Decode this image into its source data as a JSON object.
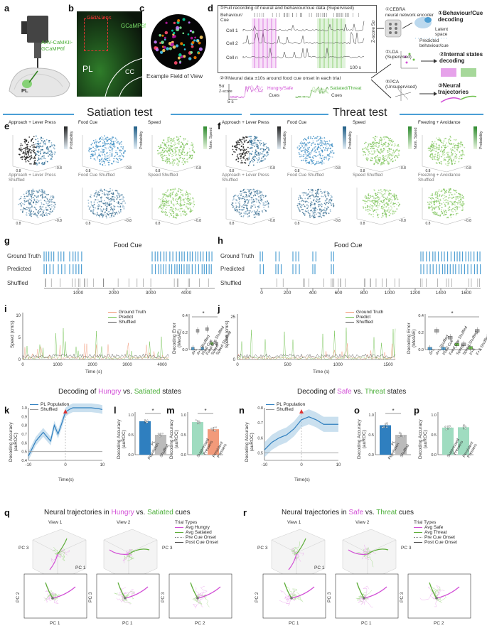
{
  "panels": {
    "a": {
      "letter": "a",
      "label1": "AAV-CaMKII-",
      "label2": "GCaMP6f",
      "region": "PL"
    },
    "b": {
      "letter": "b",
      "lens": "GRIN lens",
      "indicator": "GCaMP6f",
      "pl": "PL",
      "cc": "CC"
    },
    "c": {
      "letter": "c",
      "caption": "Example Field of View"
    },
    "d": {
      "letter": "d",
      "step1": "①Full recording of neural and behaviour/cue data (Supervised)",
      "beh": "Behaviour/\nCue",
      "cell1": "Cell 1",
      "cell2": "Cell 2",
      "celln": "Cell n",
      "scale": "100 s",
      "zscore": "Z-score 5σ",
      "step23": "②③Neural data ±10s around food cue onset in each trial",
      "z5": "5σ",
      "z_axis": "Z-score",
      "t5": "5 s",
      "cue_hungry": "Hungry/Safe",
      "cue_sated": "Satiated/Threat",
      "cues": "Cues",
      "cebra": "①CEBRA\nneural network encoder",
      "lda": "②LDA\n(Supervised)",
      "pca": "③PCA\n(Unsupervised)",
      "out1": "①Behaviour/Cue\ndecoding",
      "latent": "Latent\nspace",
      "predicted": "Predicted\nbehaviour/cue",
      "out2": "②Internal states\ndecoding",
      "out3": "③Neural trajectories"
    },
    "sections": {
      "satiation": "Satiation test",
      "threat": "Threat test"
    },
    "e": {
      "letter": "e",
      "titles": [
        "Approach + Lever Press",
        "Food Cue",
        "Speed"
      ],
      "shuffled": [
        "Approach + Lever Press\nShuffled",
        "Food Cue Shuffled",
        "Speed Shuffled"
      ],
      "cbar": [
        "Probability",
        "Probability",
        "Nom. Speed"
      ]
    },
    "f": {
      "letter": "f",
      "titles": [
        "Approach + Lever Press",
        "Food Cue",
        "Speed",
        "Freezing + Avoidance"
      ],
      "shuffled": [
        "Approach + Lever Press\nShuffled",
        "Food Cue Shuffled",
        "Speed Shuffled",
        "Freezing + Avoidance\nShuffled"
      ],
      "cbar": [
        "Probability",
        "Probability",
        "Nom. Speed",
        "Probability"
      ]
    },
    "g": {
      "letter": "g",
      "title": "Food Cue",
      "rows": [
        "Ground Truth",
        "Predicted",
        "Shuffled"
      ],
      "ticks": [
        "1000",
        "2000",
        "3000",
        "4000"
      ]
    },
    "h": {
      "letter": "h",
      "title": "Food Cue",
      "rows": [
        "Ground Truth",
        "Predicted",
        "Shuffled"
      ],
      "ticks": [
        "0",
        "200",
        "400",
        "600",
        "800",
        "1000",
        "1200",
        "1400",
        "1600"
      ]
    },
    "i": {
      "letter": "i",
      "ylabel": "Speed (cm/s)",
      "xlabel": "Time (s)",
      "yticks": [
        "0",
        "5",
        "10"
      ],
      "xticks": [
        "0",
        "1000",
        "2000",
        "3000",
        "4000"
      ],
      "legend": [
        "Ground Truth",
        "Predict",
        "Shuffled"
      ],
      "box_ylabel": "Decoding Error\n(MedAE)",
      "box_yticks": [
        "0.0",
        "0.2",
        "0.4"
      ],
      "box_cats": [
        "A+L",
        "A+L Shuffled",
        "Food Cue",
        "Food Cue Shuffled",
        "Speed",
        "Speed Shuffled"
      ],
      "star": "*"
    },
    "j": {
      "letter": "j",
      "ylabel": "Speed (cm/s)",
      "xlabel": "Time (s)",
      "yticks": [
        "0",
        "25"
      ],
      "xticks": [
        "0",
        "500",
        "1000",
        "1500"
      ],
      "legend": [
        "Ground Truth",
        "Predict",
        "Shuffled"
      ],
      "box_ylabel": "Decoding Error\n(MedAE)",
      "box_yticks": [
        "0.0",
        "0.2",
        "0.4"
      ],
      "box_cats": [
        "A+L",
        "A+L Shuffled",
        "Food Cue",
        "Food Cue Shuffled",
        "Speed",
        "Speed Shuffled",
        "F+A",
        "F+A Shuffled"
      ],
      "star": "*"
    },
    "k": {
      "letter": "k",
      "title_pre": "Decoding of ",
      "title_a": "Hungry",
      "title_mid": " vs. ",
      "title_b": "Satiated",
      "title_post": " states",
      "legend": [
        "PL Population",
        "Shuffled"
      ],
      "ylabel": "Decoding Accuracy\n(auROC)",
      "xlabel": "Time(s)",
      "yticks": [
        "0.4",
        "0.5",
        "0.6",
        "0.7",
        "0.8",
        "0.9",
        "1.0"
      ],
      "xticks": [
        "-10",
        "0",
        "10"
      ]
    },
    "l": {
      "letter": "l",
      "ylabel": "Decoding Accuracy\n(auROC)",
      "yticks": [
        "0.0",
        "0.5",
        "1.0"
      ],
      "cats": [
        "PL\nPopulation",
        "Shuffled"
      ],
      "values": [
        0.84,
        0.5
      ],
      "star": "*"
    },
    "m": {
      "letter": "m",
      "ylabel": "Decoding Accuracy\n(auROC)",
      "yticks": [
        "0.0",
        "0.5",
        "1.0"
      ],
      "cats": [
        "Suppressed\nPressers",
        "Persistent\nPressers"
      ],
      "values": [
        0.82,
        0.64
      ],
      "star": "*"
    },
    "n": {
      "letter": "n",
      "title_pre": "Decoding of ",
      "title_a": "Safe",
      "title_mid": " vs. ",
      "title_b": "Threat",
      "title_post": " states",
      "legend": [
        "PL Population",
        "Shuffled"
      ],
      "ylabel": "Decoding Accuracy\n(auROC)",
      "xlabel": "Time(s)",
      "yticks": [
        "0.5",
        "0.6",
        "0.7",
        "0.8"
      ],
      "xticks": [
        "-10",
        "0",
        "10"
      ]
    },
    "o": {
      "letter": "o",
      "ylabel": "Decoding Accuracy\n(auROC)",
      "yticks": [
        "0.0",
        "0.5",
        "1.0"
      ],
      "cats": [
        "PL\nPopulation",
        "Shuffled"
      ],
      "values": [
        0.74,
        0.5
      ],
      "star": "*"
    },
    "p": {
      "letter": "p",
      "ylabel": "Decoding Accuracy\n(auROC)",
      "yticks": [
        "0.0",
        "0.5",
        "1.0"
      ],
      "cats": [
        "Suppressed\nPressers",
        "Persistent\nPressers"
      ],
      "values": [
        0.68,
        0.69
      ]
    },
    "q": {
      "letter": "q",
      "title_pre": "Neural trajectories in ",
      "title_a": "Hungry",
      "title_mid": " vs. ",
      "title_b": "Satiated",
      "title_post": " cues",
      "view1": "View 1",
      "view2": "View 2",
      "legend_title": "Trial Types",
      "legend": [
        "Avg Hungry",
        "Avg Satiated",
        "Pre Cue Onset",
        "Post Cue Onset"
      ],
      "pc1": "PC 1",
      "pc2": "PC 2",
      "pc3": "PC 3"
    },
    "r": {
      "letter": "r",
      "title_pre": "Neural trajectories in ",
      "title_a": "Safe",
      "title_mid": " vs. ",
      "title_b": "Threat",
      "title_post": " cues",
      "view1": "View 1",
      "view2": "View 2",
      "legend_title": "Trial Types",
      "legend": [
        "Avg Safe",
        "Avg Threat",
        "Pre Cue Onset",
        "Post Cue Onset"
      ],
      "pc1": "PC 1",
      "pc2": "PC 2",
      "pc3": "PC 3"
    }
  },
  "colors": {
    "magenta": "#d24fd6",
    "green": "#6cc04a",
    "blue": "#2f7fbf",
    "lightblue": "#4f9fd3",
    "grey": "#9a9a9a",
    "seafoam": "#9fdcc0",
    "salmon": "#f29a7a"
  },
  "chart_data": [
    {
      "type": "bar",
      "panel": "l",
      "categories": [
        "PL Population",
        "Shuffled"
      ],
      "values": [
        0.84,
        0.5
      ],
      "ylim": [
        0,
        1.0
      ],
      "ylabel": "Decoding Accuracy (auROC)"
    },
    {
      "type": "bar",
      "panel": "m",
      "categories": [
        "Suppressed Pressers",
        "Persistent Pressers"
      ],
      "values": [
        0.82,
        0.64
      ],
      "ylim": [
        0,
        1.0
      ],
      "ylabel": "Decoding Accuracy (auROC)"
    },
    {
      "type": "bar",
      "panel": "o",
      "categories": [
        "PL Population",
        "Shuffled"
      ],
      "values": [
        0.74,
        0.5
      ],
      "ylim": [
        0,
        1.0
      ],
      "ylabel": "Decoding Accuracy (auROC)"
    },
    {
      "type": "bar",
      "panel": "p",
      "categories": [
        "Suppressed Pressers",
        "Persistent Pressers"
      ],
      "values": [
        0.68,
        0.69
      ],
      "ylim": [
        0,
        1.0
      ],
      "ylabel": "Decoding Accuracy (auROC)"
    },
    {
      "type": "line",
      "panel": "k",
      "x": [
        -10,
        -8,
        -6,
        -4,
        -3,
        -2,
        -1,
        0,
        1,
        2,
        3,
        5,
        7,
        9,
        10
      ],
      "series": [
        {
          "name": "PL Population",
          "values": [
            0.45,
            0.62,
            0.72,
            0.62,
            0.8,
            0.7,
            0.82,
            0.95,
            0.98,
            1.0,
            1.0,
            1.0,
            1.0,
            0.99,
            0.98
          ]
        },
        {
          "name": "Shuffled",
          "values": [
            0.5,
            0.5,
            0.5,
            0.5,
            0.5,
            0.5,
            0.5,
            0.5,
            0.5,
            0.5,
            0.5,
            0.5,
            0.5,
            0.5,
            0.5
          ]
        }
      ],
      "ylim": [
        0.4,
        1.0
      ],
      "xlabel": "Time(s)"
    },
    {
      "type": "line",
      "panel": "n",
      "x": [
        -10,
        -8,
        -6,
        -4,
        -2,
        0,
        2,
        4,
        6,
        8,
        10
      ],
      "series": [
        {
          "name": "PL Population",
          "values": [
            0.52,
            0.57,
            0.6,
            0.62,
            0.66,
            0.72,
            0.74,
            0.72,
            0.69,
            0.69,
            0.69
          ]
        },
        {
          "name": "Shuffled",
          "values": [
            0.5,
            0.5,
            0.5,
            0.5,
            0.5,
            0.5,
            0.5,
            0.5,
            0.5,
            0.5,
            0.5
          ]
        }
      ],
      "ylim": [
        0.45,
        0.8
      ],
      "xlabel": "Time(s)"
    },
    {
      "type": "bar",
      "panel": "i-box",
      "categories": [
        "A+L",
        "A+L Shuffled",
        "Food Cue",
        "Food Cue Shuffled",
        "Speed",
        "Speed Shuffled"
      ],
      "values": [
        0.01,
        0.22,
        0.01,
        0.24,
        0.07,
        0.07
      ],
      "ylim": [
        0,
        0.4
      ],
      "ylabel": "Decoding Error (MedAE)"
    },
    {
      "type": "bar",
      "panel": "j-box",
      "categories": [
        "A+L",
        "A+L Shuffled",
        "Food Cue",
        "Food Cue Shuffled",
        "Speed",
        "Speed Shuffled",
        "F+A",
        "F+A Shuffled"
      ],
      "values": [
        0.01,
        0.22,
        0.01,
        0.14,
        0.06,
        0.06,
        0.02,
        0.22
      ],
      "ylim": [
        0,
        0.4
      ],
      "ylabel": "Decoding Error (MedAE)"
    }
  ]
}
